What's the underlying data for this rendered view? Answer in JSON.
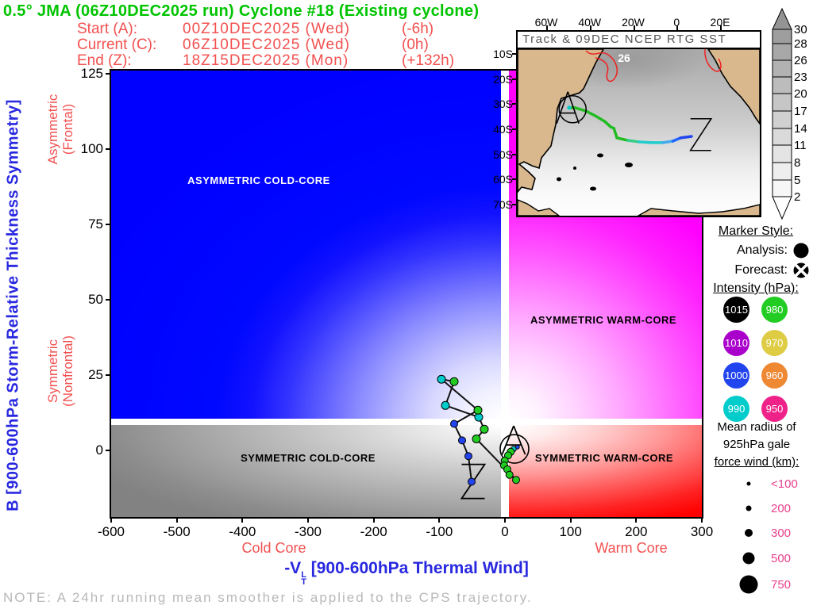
{
  "header": {
    "title": "0.5° JMA (06Z10DEC2025 run) Cyclone #18 (Existing cyclone)",
    "runs": [
      {
        "label": "Start (A):",
        "datetime": "00Z10DEC2025 (Wed)",
        "offset": "(-6h)"
      },
      {
        "label": "Current (C):",
        "datetime": "06Z10DEC2025 (Wed)",
        "offset": "(0h)"
      },
      {
        "label": "End (Z):",
        "datetime": "18Z15DEC2025 (Mon)",
        "offset": "(+132h)"
      }
    ]
  },
  "axes": {
    "y_label": "B [900-600hPa Storm-Relative Thickness Symmetry]",
    "asym_lines": [
      "Asymmetric",
      "(Frontal)"
    ],
    "sym_lines": [
      "Symmetric",
      "(Nonfrontal)"
    ],
    "x_label_prefix": "-V",
    "x_label_sup": "L",
    "x_label_sub": "T",
    "x_label_rest": " [900-600hPa Thermal Wind]",
    "cold_label": "Cold Core",
    "warm_label": "Warm Core"
  },
  "quadrants": {
    "top_left": {
      "label": "ASYMMETRIC COLD-CORE",
      "color": "#0000ff",
      "text_color": "#ffffff"
    },
    "top_right": {
      "label": "ASYMMETRIC WARM-CORE",
      "color": "#ff00ff",
      "text_color": "#000000"
    },
    "bottom_left": {
      "label": "SYMMETRIC COLD-CORE",
      "color": "#828282",
      "text_color": "#000000"
    },
    "bottom_right": {
      "label": "SYMMETRIC WARM-CORE",
      "color": "#ff0000",
      "text_color": "#000000"
    }
  },
  "note": "NOTE:  A 24hr running mean smoother is applied to the CPS trajectory.",
  "chart_data": {
    "type": "scatter",
    "x_axis": {
      "label": "-VT(L) [900-600hPa Thermal Wind]",
      "min": -600,
      "max": 300,
      "ticks": [
        -600,
        -500,
        -400,
        -300,
        -200,
        -100,
        0,
        100,
        200,
        300
      ]
    },
    "y_axis": {
      "label": "B [900-600hPa Storm-Relative Thickness Symmetry]",
      "min": -22,
      "max": 126,
      "ticks": [
        0,
        25,
        50,
        75,
        100,
        125
      ]
    },
    "thresholds": {
      "vt_zero": 0,
      "b_symmetry": 10
    },
    "trajectory": [
      {
        "vt": 19.0,
        "b": 1.2,
        "p": 1000,
        "r": 2.5
      },
      {
        "vt": 13.0,
        "b": 0.5,
        "p": 990,
        "r": 3.5
      },
      {
        "vt": 8.8,
        "b": -0.4,
        "p": 980,
        "r": 4.5
      },
      {
        "vt": 4.8,
        "b": -1.6,
        "p": 980,
        "r": 4.5
      },
      {
        "vt": -0.4,
        "b": -3.3,
        "p": 980,
        "r": 4.5
      },
      {
        "vt": -1.2,
        "b": -4.9,
        "p": 980,
        "r": 4.5
      },
      {
        "vt": 3.6,
        "b": -6.2,
        "p": 980,
        "r": 4.5
      },
      {
        "vt": 6.9,
        "b": -8.0,
        "p": 980,
        "r": 4.5
      },
      {
        "vt": 16.9,
        "b": -9.7,
        "p": 980,
        "r": 4.5
      },
      {
        "vt": -43.5,
        "b": 3.9,
        "p": 980,
        "r": 5
      },
      {
        "vt": -31.4,
        "b": 7.1,
        "p": 980,
        "r": 5
      },
      {
        "vt": -39.9,
        "b": 11.1,
        "p": 990,
        "r": 5
      },
      {
        "vt": -90.7,
        "b": 15.0,
        "p": 990,
        "r": 5
      },
      {
        "vt": -77.4,
        "b": 22.9,
        "p": 980,
        "r": 5
      },
      {
        "vt": -96.8,
        "b": 23.7,
        "p": 990,
        "r": 5
      },
      {
        "vt": -41.1,
        "b": 13.4,
        "p": 980,
        "r": 5
      },
      {
        "vt": -77.4,
        "b": 8.9,
        "p": 1000,
        "r": 4.5
      },
      {
        "vt": -65.3,
        "b": 3.4,
        "p": 1000,
        "r": 4.5
      },
      {
        "vt": -55.6,
        "b": -1.8,
        "p": 1000,
        "r": 4.5
      },
      {
        "vt": -50.8,
        "b": -10.3,
        "p": 1000,
        "r": 4.5
      }
    ],
    "annotations": [
      {
        "letter": "A",
        "vt": 14.5,
        "b": 0.6,
        "circled": true
      },
      {
        "letter": "Z",
        "vt": -48.4,
        "b": -10.2,
        "circled": false
      }
    ]
  },
  "inset_map": {
    "title": "Track & 09DEC NCEP RTG SST",
    "lon_ticks": [
      {
        "label": "60W",
        "lon": -60
      },
      {
        "label": "40W",
        "lon": -40
      },
      {
        "label": "20W",
        "lon": -20
      },
      {
        "label": "0",
        "lon": 0
      },
      {
        "label": "20E",
        "lon": 20
      }
    ],
    "lat_ticks": [
      {
        "label": "10S",
        "lat": -10
      },
      {
        "label": "20S",
        "lat": -20
      },
      {
        "label": "30S",
        "lat": -30
      },
      {
        "label": "40S",
        "lat": -40
      },
      {
        "label": "50S",
        "lat": -50
      },
      {
        "label": "60S",
        "lat": -60
      },
      {
        "label": "70S",
        "lat": -70
      }
    ],
    "sst_contour_label": "26",
    "colorbar_values": [
      "30",
      "28",
      "26",
      "23",
      "20",
      "17",
      "14",
      "11",
      "8",
      "5",
      "2"
    ],
    "track": [
      {
        "lon": -50.2,
        "lat": -30.8,
        "color": "#00cccc"
      },
      {
        "lon": -47.5,
        "lat": -30.8,
        "color": "#22bb22"
      },
      {
        "lon": -42.5,
        "lat": -32.1,
        "color": "#22bb22"
      },
      {
        "lon": -38.2,
        "lat": -34.0,
        "color": "#22bb22"
      },
      {
        "lon": -33.9,
        "lat": -36.2,
        "color": "#22bb22"
      },
      {
        "lon": -31.1,
        "lat": -38.4,
        "color": "#22bb22"
      },
      {
        "lon": -29.6,
        "lat": -39.0,
        "color": "#22bb22"
      },
      {
        "lon": -28.2,
        "lat": -42.8,
        "color": "#22bb22"
      },
      {
        "lon": -23.2,
        "lat": -43.8,
        "color": "#22bb22"
      },
      {
        "lon": -17.9,
        "lat": -44.4,
        "color": "#33cc88"
      },
      {
        "lon": -12.5,
        "lat": -44.7,
        "color": "#22cccc"
      },
      {
        "lon": -7.1,
        "lat": -44.7,
        "color": "#22cccc"
      },
      {
        "lon": -2.5,
        "lat": -44.1,
        "color": "#44aaee"
      },
      {
        "lon": 1.1,
        "lat": -42.8,
        "color": "#2266ff"
      },
      {
        "lon": 6.1,
        "lat": -42.2,
        "color": "#2244ee"
      }
    ],
    "annotations": [
      {
        "letter": "A",
        "lon": -48.6,
        "lat": -31.4,
        "circled": true
      },
      {
        "letter": "Z",
        "lon": 10.4,
        "lat": -41.5,
        "circled": false
      }
    ]
  },
  "legend": {
    "marker_style": {
      "title": "Marker Style:",
      "analysis_label": "Analysis:",
      "forecast_label": "Forecast:"
    },
    "intensity": {
      "title": "Intensity (hPa):",
      "items": [
        {
          "hpa": "1015",
          "color": "#000000"
        },
        {
          "hpa": "980",
          "color": "#22cc22"
        },
        {
          "hpa": "1010",
          "color": "#aa00cc"
        },
        {
          "hpa": "970",
          "color": "#ddcc44"
        },
        {
          "hpa": "1000",
          "color": "#2244ee"
        },
        {
          "hpa": "960",
          "color": "#ee8833"
        },
        {
          "hpa": "990",
          "color": "#00cccc"
        },
        {
          "hpa": "950",
          "color": "#ee2288"
        }
      ]
    },
    "radius": {
      "title_lines": [
        "Mean radius of",
        "925hPa gale",
        "force wind (km):"
      ],
      "label_color": "#e8408c",
      "items": [
        {
          "label": "<100",
          "r": 2.5
        },
        {
          "label": "200",
          "r": 3.5
        },
        {
          "label": "300",
          "r": 5
        },
        {
          "label": "500",
          "r": 7.5
        },
        {
          "label": "750",
          "r": 11.5
        }
      ]
    }
  }
}
